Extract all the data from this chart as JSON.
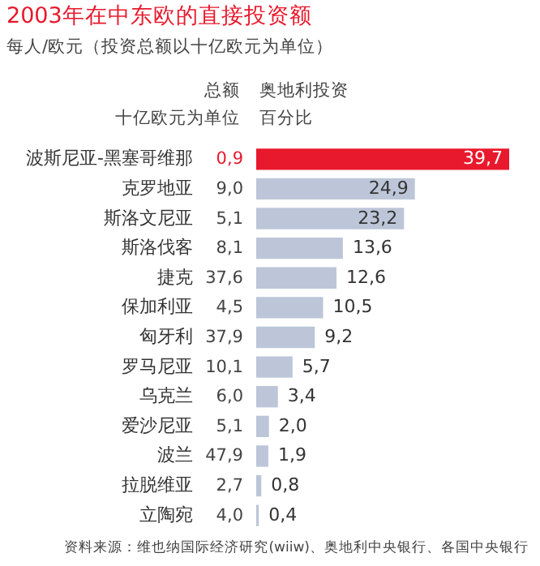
{
  "chart_data": {
    "type": "bar",
    "orientation": "horizontal",
    "title": "2003年在中东欧的直接投资额",
    "subtitle": "每人/欧元（投资总额以十亿欧元为单位）",
    "xlabel": "奥地利投资百分比",
    "categories": [
      "波斯尼亚-黑塞哥维那",
      "克罗地亚",
      "斯洛文尼亚",
      "斯洛伐客",
      "捷克",
      "保加利亚",
      "匈牙利",
      "罗马尼亚",
      "乌克兰",
      "爱沙尼亚",
      "波兰",
      "拉脱维亚",
      "立陶宛"
    ],
    "values": [
      39.7,
      24.9,
      23.2,
      13.6,
      12.6,
      10.5,
      9.2,
      5.7,
      3.4,
      2.0,
      1.9,
      0.8,
      0.4
    ],
    "value_labels": [
      "39,7",
      "24,9",
      "23,2",
      "13,6",
      "12,6",
      "10,5",
      "9,2",
      "5,7",
      "3,4",
      "2,0",
      "1,9",
      "0,8",
      "0,4"
    ],
    "colors": [
      "#e8192c",
      "#bcc6d8",
      "#bcc6d8",
      "#bcc6d8",
      "#bcc6d8",
      "#bcc6d8",
      "#bcc6d8",
      "#bcc6d8",
      "#bcc6d8",
      "#bcc6d8",
      "#bcc6d8",
      "#bcc6d8",
      "#bcc6d8"
    ],
    "annotations": [
      "总额",
      "十亿欧元为单位",
      "0,9",
      "9,0",
      "5,1",
      "8,1",
      "37,6",
      "4,5",
      "37,9",
      "10,1",
      "6,0",
      "5,1",
      "47,9",
      "2,7",
      "4,0",
      "资料来源：维也纳国际经济研究(wiiw)、奥地利中央银行、各国中央银行"
    ]
  }
}
